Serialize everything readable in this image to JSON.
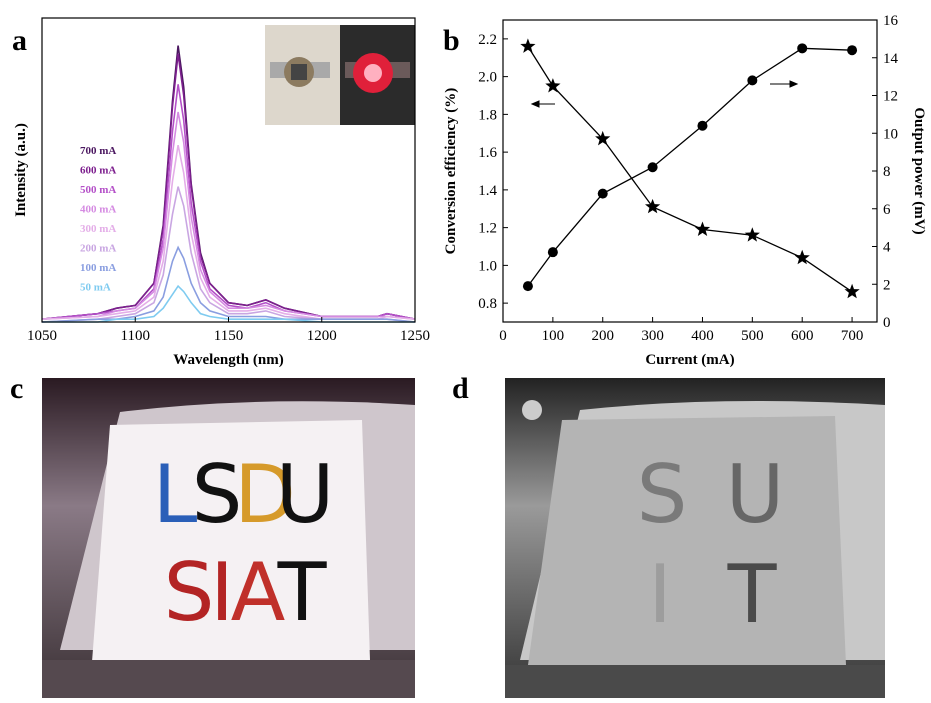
{
  "panel_labels": [
    "a",
    "b",
    "c",
    "d"
  ],
  "chart_data": [
    {
      "type": "line",
      "x_label": "Wavelength (nm)",
      "y_label": "Intensity (a.u.)",
      "x": [
        1050,
        1080,
        1090,
        1100,
        1110,
        1115,
        1120,
        1123,
        1126,
        1130,
        1135,
        1140,
        1150,
        1160,
        1170,
        1180,
        1200,
        1230,
        1235,
        1250
      ],
      "xlim": [
        1050,
        1250
      ],
      "xticks": [
        1050,
        1100,
        1150,
        1200,
        1250
      ],
      "ylim": [
        0,
        1.1
      ],
      "legend": true,
      "series": [
        {
          "name": "700 mA",
          "color": "#4b1760",
          "values": [
            0.01,
            0.03,
            0.05,
            0.06,
            0.14,
            0.35,
            0.8,
            1.0,
            0.85,
            0.5,
            0.25,
            0.14,
            0.07,
            0.06,
            0.08,
            0.05,
            0.02,
            0.02,
            0.03,
            0.01
          ]
        },
        {
          "name": "600 mA",
          "color": "#7d1f8e",
          "values": [
            0.01,
            0.03,
            0.05,
            0.06,
            0.14,
            0.34,
            0.78,
            0.97,
            0.82,
            0.49,
            0.24,
            0.14,
            0.07,
            0.06,
            0.08,
            0.05,
            0.02,
            0.02,
            0.03,
            0.01
          ]
        },
        {
          "name": "500 mA",
          "color": "#b450c8",
          "values": [
            0.01,
            0.03,
            0.04,
            0.05,
            0.12,
            0.3,
            0.69,
            0.86,
            0.73,
            0.43,
            0.22,
            0.12,
            0.06,
            0.05,
            0.07,
            0.04,
            0.02,
            0.02,
            0.03,
            0.01
          ]
        },
        {
          "name": "400 mA",
          "color": "#d58be2",
          "values": [
            0.01,
            0.02,
            0.04,
            0.05,
            0.11,
            0.27,
            0.61,
            0.76,
            0.65,
            0.38,
            0.19,
            0.11,
            0.05,
            0.05,
            0.06,
            0.04,
            0.02,
            0.02,
            0.02,
            0.01
          ]
        },
        {
          "name": "300 mA",
          "color": "#e4aee8",
          "values": [
            0.01,
            0.02,
            0.03,
            0.04,
            0.09,
            0.22,
            0.51,
            0.64,
            0.54,
            0.32,
            0.16,
            0.09,
            0.04,
            0.04,
            0.05,
            0.03,
            0.01,
            0.01,
            0.02,
            0.01
          ]
        },
        {
          "name": "200 mA",
          "color": "#c9a6e2",
          "values": [
            0,
            0.01,
            0.02,
            0.03,
            0.07,
            0.17,
            0.39,
            0.49,
            0.42,
            0.25,
            0.12,
            0.07,
            0.03,
            0.03,
            0.04,
            0.02,
            0.01,
            0.01,
            0.01,
            0
          ]
        },
        {
          "name": "100 mA",
          "color": "#8a9ee0",
          "values": [
            0,
            0.01,
            0.01,
            0.02,
            0.04,
            0.09,
            0.22,
            0.27,
            0.23,
            0.14,
            0.07,
            0.04,
            0.02,
            0.02,
            0.02,
            0.01,
            0.01,
            0.01,
            0.01,
            0
          ]
        },
        {
          "name": "50 mA",
          "color": "#7fcbf0",
          "values": [
            0,
            0,
            0.01,
            0.01,
            0.02,
            0.05,
            0.1,
            0.13,
            0.11,
            0.07,
            0.03,
            0.02,
            0.01,
            0.01,
            0.01,
            0.01,
            0,
            0,
            0,
            0
          ]
        }
      ]
    },
    {
      "type": "line",
      "x_label": "Current (mA)",
      "y_label": "Conversion efficiency (%)",
      "y2_label": "Output power (mV)",
      "x": [
        50,
        100,
        200,
        300,
        400,
        500,
        600,
        700
      ],
      "xlim": [
        0,
        750
      ],
      "xticks": [
        0,
        100,
        200,
        300,
        400,
        500,
        600,
        700
      ],
      "ylim": [
        0.7,
        2.3
      ],
      "yticks": [
        0.8,
        {
          "value": 1,
          "label": "1.0"
        },
        1.2,
        1.4,
        1.6,
        1.8,
        {
          "value": 2,
          "label": "2.0"
        },
        2.2
      ],
      "y2lim": [
        0,
        16
      ],
      "y2ticks": [
        0,
        2,
        4,
        6,
        8,
        10,
        12,
        14,
        16
      ],
      "series": [
        {
          "color": "#000000",
          "marker": "star",
          "values": [
            2.16,
            1.95,
            1.67,
            1.31,
            1.19,
            1.16,
            1.04,
            0.86
          ]
        },
        {
          "color": "#000000",
          "marker": "circle",
          "axis": "y2",
          "values": [
            1.9,
            3.7,
            6.8,
            8.2,
            10.4,
            12.8,
            14.5,
            14.4
          ]
        }
      ]
    }
  ],
  "photo_c": {
    "letters": [
      "L",
      "S",
      "D",
      "U",
      "S",
      "I",
      "A",
      "T"
    ]
  },
  "photo_d": {
    "letters": [
      "S",
      "U",
      "I",
      "T"
    ]
  }
}
